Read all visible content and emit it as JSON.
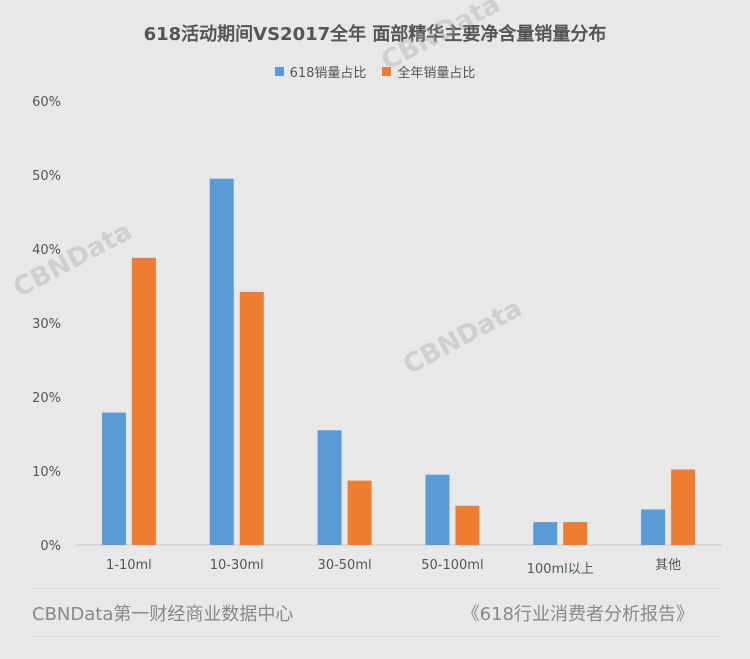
{
  "chart_data": {
    "type": "bar",
    "title": "618活动期间VS2017全年 面部精华主要净含量销量分布",
    "categories": [
      "1-10ml",
      "10-30ml",
      "30-50ml",
      "50-100ml",
      "100ml以上",
      "其他"
    ],
    "series": [
      {
        "name": "618销量占比",
        "values": [
          17.9,
          49.5,
          15.5,
          9.5,
          3.1,
          4.8
        ],
        "color": "#5b9bd5"
      },
      {
        "name": "全年销量占比",
        "values": [
          38.8,
          34.2,
          8.7,
          5.3,
          3.1,
          10.2
        ],
        "color": "#ed7d31"
      }
    ],
    "yticks": [
      "0%",
      "10%",
      "20%",
      "30%",
      "40%",
      "50%",
      "60%"
    ],
    "ylim": [
      0,
      60
    ],
    "grid": false,
    "legend": "top-center"
  },
  "footer": {
    "left": "CBNData第一财经商业数据中心",
    "right": "《618行业消费者分析报告》"
  },
  "watermark": {
    "text": "CBNData"
  }
}
